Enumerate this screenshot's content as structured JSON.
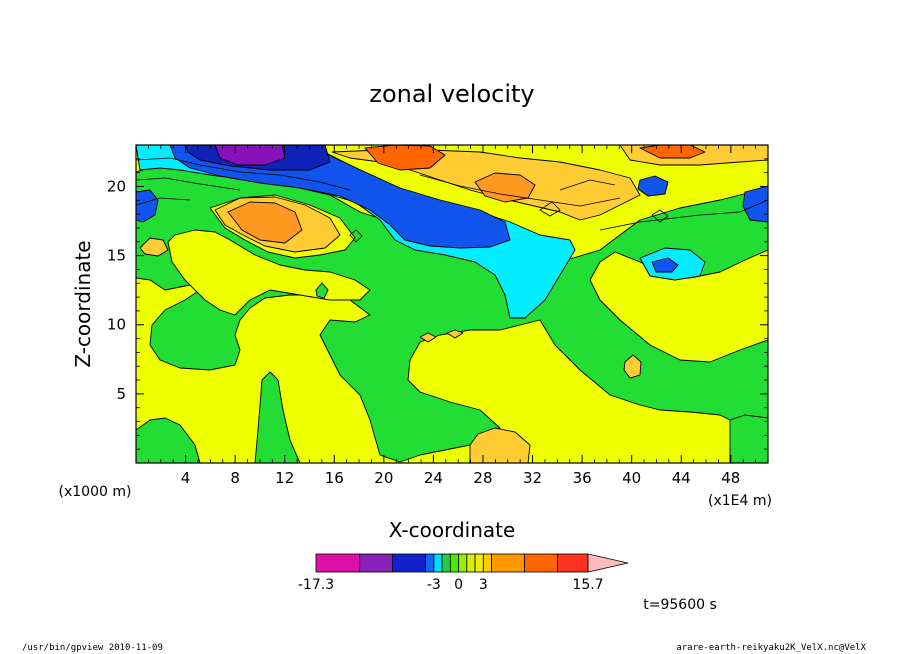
{
  "chart_data": {
    "type": "heatmap",
    "title": "zonal velocity",
    "xlabel": "X-coordinate",
    "ylabel": "Z-coordinate",
    "x_unit_left": "(x1000 m)",
    "x_unit_right": "(x1E4 m)",
    "xlim": [
      0,
      51
    ],
    "ylim": [
      0,
      23
    ],
    "x_ticks": [
      "4",
      "8",
      "12",
      "16",
      "20",
      "24",
      "28",
      "32",
      "36",
      "40",
      "44",
      "48"
    ],
    "x_tick_values": [
      4,
      8,
      12,
      16,
      20,
      24,
      28,
      32,
      36,
      40,
      44,
      48
    ],
    "y_ticks": [
      "5",
      "10",
      "15",
      "20"
    ],
    "y_tick_values": [
      5,
      10,
      15,
      20
    ],
    "colorbar": {
      "labels": [
        {
          "text": "-17.3",
          "value": -17.3
        },
        {
          "text": "-3",
          "value": -3
        },
        {
          "text": "0",
          "value": 0
        },
        {
          "text": "3",
          "value": 3
        },
        {
          "text": "15.7",
          "value": 15.7
        }
      ],
      "levels": [
        -17.3,
        -12,
        -8,
        -4,
        -3,
        -2,
        -1,
        0,
        1,
        2,
        3,
        4,
        8,
        12,
        15.7
      ],
      "colors": [
        "#dd11aa",
        "#8822bb",
        "#1122cc",
        "#1166ee",
        "#00ddff",
        "#22cc44",
        "#44ee00",
        "#99ee00",
        "#ddee00",
        "#eeee00",
        "#ffcc00",
        "#ff9900",
        "#ff6600",
        "#ff3322",
        "#ff8877"
      ],
      "extend_color": "#ffbbbb"
    },
    "time_label": "t=95600 s",
    "footer_left": "/usr/bin/gpview  2010-11-09",
    "footer_right": "arare-earth-reikyaku2K_VelX.nc@VelX",
    "field_colors": {
      "yellow": "#eeff00",
      "green": "#22dd33",
      "light_orange": "#ffcc33",
      "orange": "#ff9922",
      "red_orange": "#ff6600",
      "cyan": "#00eeff",
      "blue": "#1155ee",
      "dark_blue": "#1122bb",
      "purple": "#8811bb"
    }
  }
}
